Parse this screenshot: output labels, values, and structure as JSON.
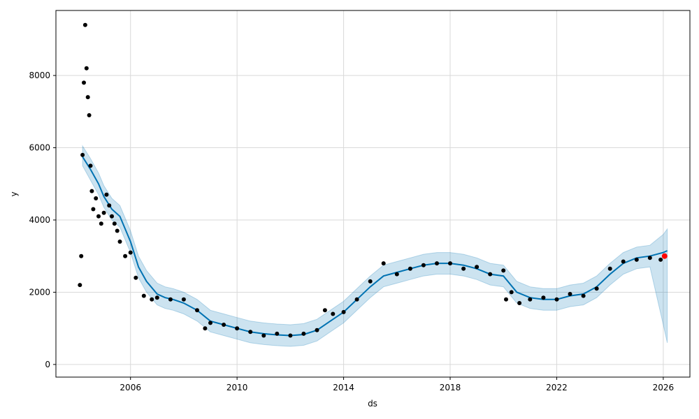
{
  "chart_data": {
    "type": "line",
    "title": "",
    "xlabel": "ds",
    "ylabel": "y",
    "xlim": [
      2003.2,
      2027.0
    ],
    "ylim": [
      -350,
      9800
    ],
    "x_ticks": [
      2006,
      2010,
      2014,
      2018,
      2022,
      2026
    ],
    "x_tick_labels": [
      "2006",
      "2010",
      "2014",
      "2018",
      "2022",
      "2026"
    ],
    "y_ticks": [
      0,
      2000,
      4000,
      6000,
      8000
    ],
    "y_tick_labels": [
      "0",
      "2000",
      "4000",
      "6000",
      "8000"
    ],
    "grid": true,
    "legend": "none",
    "colors": {
      "observed": "#000000",
      "forecast_line": "#0072b2",
      "uncertainty_band": "#0072b2",
      "highlight_point": "#ff0000",
      "axes": "#000000",
      "grid": "#d9d9d9"
    },
    "series": [
      {
        "kind": "forecast",
        "x": [
          2004.2,
          2004.5,
          2004.8,
          2005.0,
          2005.3,
          2005.6,
          2006.0,
          2006.3,
          2006.6,
          2007.0,
          2007.3,
          2007.6,
          2008.0,
          2008.5,
          2009.0,
          2009.5,
          2010.0,
          2010.5,
          2011.0,
          2011.5,
          2012.0,
          2012.5,
          2013.0,
          2013.5,
          2014.0,
          2014.5,
          2015.0,
          2015.5,
          2016.0,
          2016.5,
          2017.0,
          2017.5,
          2018.0,
          2018.5,
          2019.0,
          2019.5,
          2020.0,
          2020.5,
          2021.0,
          2021.5,
          2022.0,
          2022.5,
          2023.0,
          2023.5,
          2024.0,
          2024.5,
          2025.0,
          2025.5,
          2026.0,
          2026.15
        ],
        "yhat": [
          5750,
          5400,
          5000,
          4650,
          4300,
          4100,
          3400,
          2700,
          2300,
          1950,
          1850,
          1800,
          1700,
          1500,
          1200,
          1100,
          1000,
          900,
          850,
          820,
          800,
          830,
          950,
          1200,
          1450,
          1800,
          2150,
          2450,
          2550,
          2650,
          2750,
          2800,
          2800,
          2750,
          2650,
          2500,
          2450,
          2000,
          1850,
          1800,
          1800,
          1900,
          1950,
          2150,
          2500,
          2800,
          2950,
          3000,
          3100,
          3150
        ],
        "yhat_lower": [
          5500,
          5100,
          4700,
          4350,
          4000,
          3800,
          3100,
          2400,
          2000,
          1650,
          1550,
          1500,
          1400,
          1200,
          900,
          800,
          700,
          600,
          550,
          520,
          500,
          530,
          650,
          900,
          1150,
          1500,
          1850,
          2150,
          2250,
          2350,
          2450,
          2500,
          2500,
          2450,
          2350,
          2200,
          2150,
          1700,
          1550,
          1500,
          1500,
          1600,
          1650,
          1850,
          2200,
          2500,
          2650,
          2700,
          1100,
          600
        ],
        "yhat_upper": [
          6050,
          5700,
          5300,
          4950,
          4600,
          4400,
          3700,
          3000,
          2600,
          2250,
          2150,
          2100,
          2000,
          1800,
          1500,
          1400,
          1300,
          1200,
          1150,
          1120,
          1100,
          1130,
          1250,
          1500,
          1750,
          2100,
          2450,
          2750,
          2850,
          2950,
          3050,
          3100,
          3100,
          3050,
          2950,
          2800,
          2750,
          2300,
          2150,
          2100,
          2100,
          2200,
          2250,
          2450,
          2800,
          3100,
          3250,
          3300,
          3600,
          3750
        ]
      },
      {
        "kind": "observed",
        "x": [
          2004.1,
          2004.15,
          2004.2,
          2004.25,
          2004.3,
          2004.35,
          2004.4,
          2004.45,
          2004.5,
          2004.55,
          2004.6,
          2004.7,
          2004.8,
          2004.9,
          2005.0,
          2005.1,
          2005.2,
          2005.3,
          2005.4,
          2005.5,
          2005.6,
          2005.8,
          2006.0,
          2006.2,
          2006.5,
          2006.8,
          2007.0,
          2007.5,
          2008.0,
          2008.5,
          2008.8,
          2009.0,
          2009.5,
          2010.0,
          2010.5,
          2011.0,
          2011.5,
          2012.0,
          2012.5,
          2013.0,
          2013.3,
          2013.6,
          2014.0,
          2014.5,
          2015.0,
          2015.5,
          2016.0,
          2016.5,
          2017.0,
          2017.5,
          2018.0,
          2018.5,
          2019.0,
          2019.5,
          2020.0,
          2020.1,
          2020.3,
          2020.6,
          2021.0,
          2021.5,
          2022.0,
          2022.5,
          2023.0,
          2023.5,
          2024.0,
          2024.5,
          2025.0,
          2025.5,
          2025.9
        ],
        "y": [
          2200,
          3000,
          5800,
          7800,
          9400,
          8200,
          7400,
          6900,
          5500,
          4800,
          4300,
          4600,
          4100,
          3900,
          4200,
          4700,
          4400,
          4100,
          3900,
          3700,
          3400,
          3000,
          3100,
          2400,
          1900,
          1800,
          1850,
          1800,
          1800,
          1500,
          1000,
          1150,
          1100,
          1000,
          900,
          800,
          850,
          800,
          850,
          950,
          1500,
          1400,
          1450,
          1800,
          2300,
          2800,
          2500,
          2650,
          2750,
          2800,
          2800,
          2650,
          2700,
          2500,
          2600,
          1800,
          2000,
          1700,
          1800,
          1850,
          1800,
          1950,
          1900,
          2100,
          2650,
          2850,
          2900,
          2950,
          2900
        ]
      },
      {
        "kind": "highlight",
        "x": [
          2026.05
        ],
        "y": [
          3000
        ]
      }
    ]
  }
}
